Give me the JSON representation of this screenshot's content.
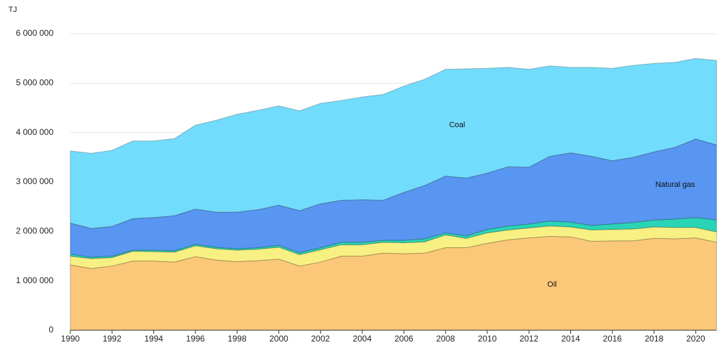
{
  "chart_data": {
    "type": "area",
    "stacked": true,
    "y_axis_label": "TJ",
    "x": [
      1990,
      1991,
      1992,
      1993,
      1994,
      1995,
      1996,
      1997,
      1998,
      1999,
      2000,
      2001,
      2002,
      2003,
      2004,
      2005,
      2006,
      2007,
      2008,
      2009,
      2010,
      2011,
      2012,
      2013,
      2014,
      2015,
      2016,
      2017,
      2018,
      2019,
      2020,
      2021
    ],
    "xlim": [
      1990,
      2021
    ],
    "xticks": [
      1990,
      1992,
      1994,
      1996,
      1998,
      2000,
      2002,
      2004,
      2006,
      2008,
      2010,
      2012,
      2014,
      2016,
      2018,
      2020
    ],
    "ylim": [
      0,
      6000000
    ],
    "yticks": [
      0,
      {
        "value": 1000000,
        "label": "1 000 000"
      },
      {
        "value": 2000000,
        "label": "2 000 000"
      },
      {
        "value": 3000000,
        "label": "3 000 000"
      },
      {
        "value": 4000000,
        "label": "4 000 000"
      },
      {
        "value": 5000000,
        "label": "5 000 000"
      },
      {
        "value": 6000000,
        "label": "6 000 000"
      }
    ],
    "grid": true,
    "series": [
      {
        "name": "Oil",
        "color": "#fac878",
        "values": [
          1320000,
          1250000,
          1300000,
          1400000,
          1400000,
          1380000,
          1490000,
          1420000,
          1390000,
          1410000,
          1440000,
          1300000,
          1380000,
          1500000,
          1500000,
          1560000,
          1550000,
          1560000,
          1670000,
          1670000,
          1760000,
          1830000,
          1870000,
          1900000,
          1890000,
          1800000,
          1810000,
          1810000,
          1860000,
          1850000,
          1870000,
          1780000
        ]
      },
      {
        "color": "#f8f082",
        "values": [
          180000,
          200000,
          170000,
          200000,
          190000,
          200000,
          220000,
          230000,
          230000,
          230000,
          240000,
          230000,
          250000,
          230000,
          230000,
          220000,
          220000,
          230000,
          260000,
          190000,
          210000,
          200000,
          200000,
          210000,
          200000,
          230000,
          230000,
          240000,
          230000,
          230000,
          210000,
          210000
        ]
      },
      {
        "color": "#2ad4b6",
        "values": [
          40000,
          30000,
          30000,
          20000,
          30000,
          30000,
          30000,
          30000,
          30000,
          30000,
          40000,
          40000,
          40000,
          50000,
          50000,
          40000,
          50000,
          60000,
          40000,
          50000,
          70000,
          80000,
          80000,
          100000,
          100000,
          90000,
          110000,
          130000,
          140000,
          170000,
          200000,
          240000
        ]
      },
      {
        "name": "Natural gas",
        "color": "#5896f2",
        "values": [
          630000,
          580000,
          600000,
          640000,
          660000,
          710000,
          710000,
          710000,
          740000,
          770000,
          810000,
          850000,
          890000,
          850000,
          860000,
          810000,
          970000,
          1080000,
          1150000,
          1170000,
          1140000,
          1200000,
          1150000,
          1310000,
          1400000,
          1400000,
          1280000,
          1320000,
          1380000,
          1450000,
          1590000,
          1520000
        ]
      },
      {
        "name": "Coal",
        "color": "#72dcfc",
        "values": [
          1460000,
          1520000,
          1540000,
          1570000,
          1550000,
          1560000,
          1700000,
          1860000,
          1980000,
          2010000,
          2010000,
          2020000,
          2030000,
          2020000,
          2080000,
          2140000,
          2150000,
          2150000,
          2160000,
          2210000,
          2120000,
          2010000,
          1980000,
          1830000,
          1730000,
          1800000,
          1870000,
          1860000,
          1790000,
          1720000,
          1630000,
          1710000
        ]
      }
    ]
  }
}
